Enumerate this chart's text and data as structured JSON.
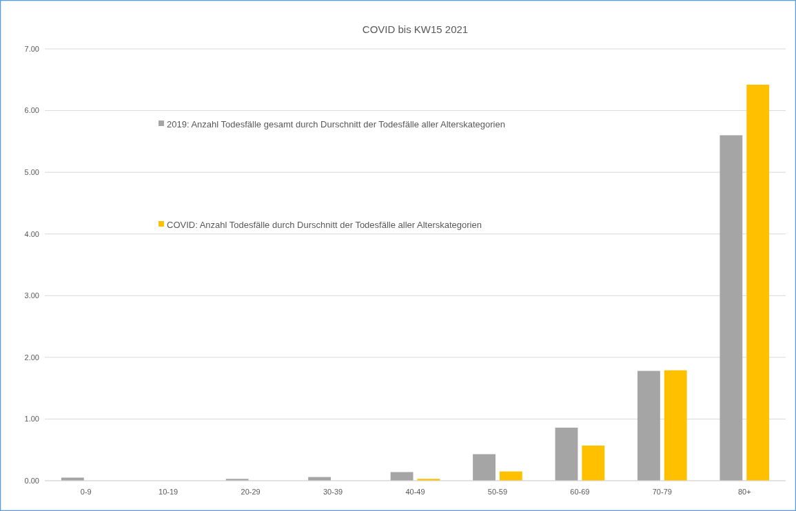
{
  "chart_data": {
    "type": "bar",
    "title": "COVID bis KW15 2021",
    "categories": [
      "0-9",
      "10-19",
      "20-29",
      "30-39",
      "40-49",
      "50-59",
      "60-69",
      "70-79",
      "80+"
    ],
    "series": [
      {
        "name": "2019: Anzahl Todesfälle gesamt durch Durschnitt der Todesfälle aller Alterskategorien",
        "color": "#a5a5a5",
        "values": [
          0.05,
          0,
          0.03,
          0.06,
          0.14,
          0.43,
          0.86,
          1.78,
          5.6
        ]
      },
      {
        "name": "COVID: Anzahl Todesfälle durch Durschnitt der Todesfälle aller Alterskategorien",
        "color": "#ffc000",
        "values": [
          0,
          0,
          0,
          0,
          0.03,
          0.15,
          0.57,
          1.79,
          6.42
        ]
      }
    ],
    "ylim": [
      0,
      7
    ],
    "yticks": [
      {
        "value": 0,
        "label": "0.00"
      },
      {
        "value": 1,
        "label": "1.00"
      },
      {
        "value": 2,
        "label": "2.00"
      },
      {
        "value": 3,
        "label": "3.00"
      },
      {
        "value": 4,
        "label": "4.00"
      },
      {
        "value": 5,
        "label": "5.00"
      },
      {
        "value": 6,
        "label": "6.00"
      },
      {
        "value": 7,
        "label": "7.00"
      }
    ],
    "grid": "y",
    "legend": "top left"
  }
}
